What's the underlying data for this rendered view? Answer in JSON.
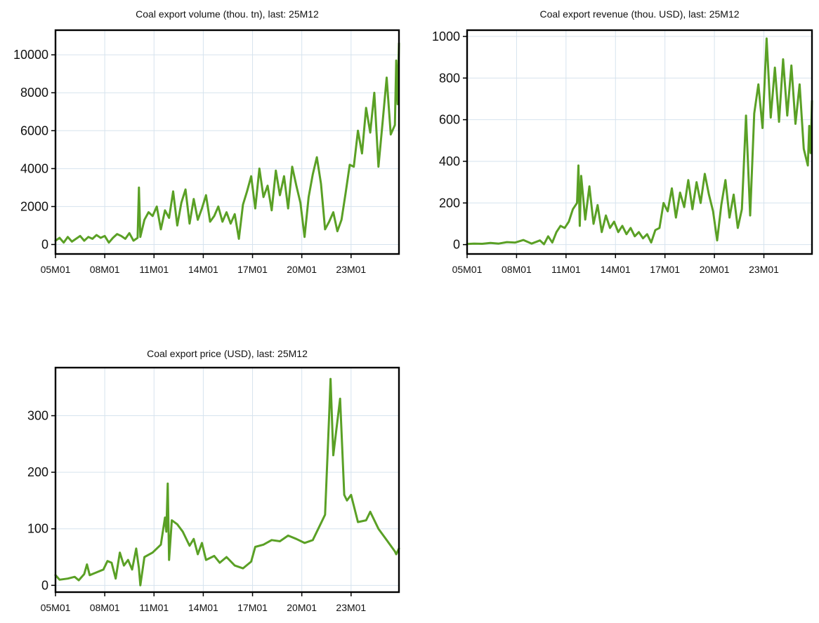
{
  "colors": {
    "line": "#5aa025",
    "grid": "#d6e3ee",
    "frame": "#000000"
  },
  "chart_data": [
    {
      "type": "line",
      "title": "Coal export volume (thou. tn), last: 25M12",
      "xlabel": "",
      "ylabel": "",
      "grid": true,
      "x_tick_labels": [
        "05M01",
        "08M01",
        "11M01",
        "14M01",
        "17M01",
        "20M01",
        "23M01"
      ],
      "y_ticks": [
        0,
        2000,
        4000,
        6000,
        8000,
        10000
      ],
      "ylim": [
        -500,
        11300
      ],
      "x_start": "05M01",
      "x_end": "25M12",
      "series": [
        {
          "points": [
            [
              "05M01",
              200
            ],
            [
              "05M04",
              350
            ],
            [
              "05M07",
              100
            ],
            [
              "05M10",
              400
            ],
            [
              "06M01",
              150
            ],
            [
              "06M04",
              300
            ],
            [
              "06M07",
              450
            ],
            [
              "06M10",
              200
            ],
            [
              "07M01",
              400
            ],
            [
              "07M04",
              300
            ],
            [
              "07M07",
              500
            ],
            [
              "07M10",
              350
            ],
            [
              "08M01",
              450
            ],
            [
              "08M04",
              100
            ],
            [
              "08M07",
              350
            ],
            [
              "08M10",
              550
            ],
            [
              "09M01",
              450
            ],
            [
              "09M04",
              300
            ],
            [
              "09M07",
              600
            ],
            [
              "09M10",
              200
            ],
            [
              "10M01",
              350
            ],
            [
              "10M02",
              3000
            ],
            [
              "10M03",
              400
            ],
            [
              "10M06",
              1300
            ],
            [
              "10M09",
              1700
            ],
            [
              "10M12",
              1500
            ],
            [
              "11M03",
              2000
            ],
            [
              "11M06",
              800
            ],
            [
              "11M09",
              1800
            ],
            [
              "11M12",
              1400
            ],
            [
              "12M03",
              2800
            ],
            [
              "12M06",
              1000
            ],
            [
              "12M09",
              2200
            ],
            [
              "12M12",
              2900
            ],
            [
              "13M03",
              1100
            ],
            [
              "13M06",
              2400
            ],
            [
              "13M09",
              1300
            ],
            [
              "13M12",
              1900
            ],
            [
              "14M03",
              2600
            ],
            [
              "14M06",
              1200
            ],
            [
              "14M09",
              1500
            ],
            [
              "14M12",
              2000
            ],
            [
              "15M03",
              1200
            ],
            [
              "15M06",
              1700
            ],
            [
              "15M09",
              1100
            ],
            [
              "15M12",
              1600
            ],
            [
              "16M03",
              300
            ],
            [
              "16M06",
              2100
            ],
            [
              "16M09",
              2800
            ],
            [
              "16M12",
              3600
            ],
            [
              "17M03",
              1900
            ],
            [
              "17M06",
              4000
            ],
            [
              "17M09",
              2500
            ],
            [
              "17M12",
              3100
            ],
            [
              "18M03",
              1800
            ],
            [
              "18M06",
              3900
            ],
            [
              "18M09",
              2600
            ],
            [
              "18M12",
              3600
            ],
            [
              "19M03",
              1900
            ],
            [
              "19M06",
              4100
            ],
            [
              "19M09",
              3100
            ],
            [
              "19M12",
              2200
            ],
            [
              "20M03",
              400
            ],
            [
              "20M06",
              2500
            ],
            [
              "20M09",
              3700
            ],
            [
              "20M12",
              4600
            ],
            [
              "21M03",
              3200
            ],
            [
              "21M06",
              800
            ],
            [
              "21M09",
              1200
            ],
            [
              "21M12",
              1700
            ],
            [
              "22M03",
              700
            ],
            [
              "22M06",
              1300
            ],
            [
              "22M09",
              2700
            ],
            [
              "22M12",
              4200
            ],
            [
              "23M03",
              4100
            ],
            [
              "23M06",
              6000
            ],
            [
              "23M09",
              4800
            ],
            [
              "23M12",
              7200
            ],
            [
              "24M03",
              5900
            ],
            [
              "24M06",
              8000
            ],
            [
              "24M09",
              4100
            ],
            [
              "24M12",
              6400
            ],
            [
              "25M03",
              8800
            ],
            [
              "25M06",
              5800
            ],
            [
              "25M09",
              6300
            ],
            [
              "25M10",
              9700
            ],
            [
              "25M11",
              7400
            ],
            [
              "25M12",
              10600
            ]
          ]
        }
      ]
    },
    {
      "type": "line",
      "title": "Coal export revenue (thou. USD), last: 25M12",
      "xlabel": "",
      "ylabel": "",
      "grid": true,
      "x_tick_labels": [
        "05M01",
        "08M01",
        "11M01",
        "14M01",
        "17M01",
        "20M01",
        "23M01"
      ],
      "y_ticks": [
        0,
        200,
        400,
        600,
        800,
        1000
      ],
      "ylim": [
        -45,
        1030
      ],
      "x_start": "05M01",
      "x_end": "25M12",
      "series": [
        {
          "points": [
            [
              "05M01",
              3
            ],
            [
              "05M06",
              5
            ],
            [
              "05M12",
              4
            ],
            [
              "06M06",
              8
            ],
            [
              "06M12",
              5
            ],
            [
              "07M06",
              12
            ],
            [
              "07M12",
              10
            ],
            [
              "08M06",
              22
            ],
            [
              "08M12",
              5
            ],
            [
              "09M06",
              20
            ],
            [
              "09M09",
              2
            ],
            [
              "09M12",
              40
            ],
            [
              "10M03",
              10
            ],
            [
              "10M06",
              60
            ],
            [
              "10M09",
              90
            ],
            [
              "10M12",
              80
            ],
            [
              "11M03",
              110
            ],
            [
              "11M06",
              170
            ],
            [
              "11M09",
              200
            ],
            [
              "11M10",
              380
            ],
            [
              "11M11",
              90
            ],
            [
              "11M12",
              330
            ],
            [
              "12M03",
              120
            ],
            [
              "12M06",
              280
            ],
            [
              "12M09",
              100
            ],
            [
              "12M12",
              190
            ],
            [
              "13M03",
              60
            ],
            [
              "13M06",
              140
            ],
            [
              "13M09",
              80
            ],
            [
              "13M12",
              110
            ],
            [
              "14M03",
              60
            ],
            [
              "14M06",
              90
            ],
            [
              "14M09",
              50
            ],
            [
              "14M12",
              80
            ],
            [
              "15M03",
              40
            ],
            [
              "15M06",
              60
            ],
            [
              "15M09",
              30
            ],
            [
              "15M12",
              50
            ],
            [
              "16M03",
              10
            ],
            [
              "16M06",
              70
            ],
            [
              "16M09",
              80
            ],
            [
              "16M12",
              200
            ],
            [
              "17M03",
              160
            ],
            [
              "17M06",
              270
            ],
            [
              "17M09",
              130
            ],
            [
              "17M12",
              250
            ],
            [
              "18M03",
              180
            ],
            [
              "18M06",
              310
            ],
            [
              "18M09",
              170
            ],
            [
              "18M12",
              300
            ],
            [
              "19M03",
              200
            ],
            [
              "19M06",
              340
            ],
            [
              "19M09",
              240
            ],
            [
              "19M12",
              160
            ],
            [
              "20M03",
              20
            ],
            [
              "20M06",
              190
            ],
            [
              "20M09",
              310
            ],
            [
              "20M12",
              130
            ],
            [
              "21M03",
              240
            ],
            [
              "21M06",
              80
            ],
            [
              "21M09",
              170
            ],
            [
              "21M12",
              620
            ],
            [
              "22M03",
              140
            ],
            [
              "22M06",
              630
            ],
            [
              "22M09",
              770
            ],
            [
              "22M12",
              560
            ],
            [
              "23M03",
              990
            ],
            [
              "23M06",
              610
            ],
            [
              "23M09",
              850
            ],
            [
              "23M12",
              590
            ],
            [
              "24M03",
              890
            ],
            [
              "24M06",
              620
            ],
            [
              "24M09",
              860
            ],
            [
              "24M12",
              580
            ],
            [
              "25M03",
              770
            ],
            [
              "25M06",
              460
            ],
            [
              "25M09",
              380
            ],
            [
              "25M10",
              570
            ],
            [
              "25M11",
              440
            ],
            [
              "25M12",
              690
            ]
          ]
        }
      ]
    },
    {
      "type": "line",
      "title": "Coal export price (USD), last: 25M12",
      "xlabel": "",
      "ylabel": "",
      "grid": true,
      "x_tick_labels": [
        "05M01",
        "08M01",
        "11M01",
        "14M01",
        "17M01",
        "20M01",
        "23M01"
      ],
      "y_ticks": [
        0,
        100,
        200,
        300
      ],
      "ylim": [
        -12,
        385
      ],
      "x_start": "05M01",
      "x_end": "25M12",
      "series": [
        {
          "points": [
            [
              "05M01",
              18
            ],
            [
              "05M04",
              10
            ],
            [
              "05M10",
              12
            ],
            [
              "06M03",
              15
            ],
            [
              "06M06",
              9
            ],
            [
              "06M10",
              20
            ],
            [
              "06M12",
              37
            ],
            [
              "07M02",
              18
            ],
            [
              "07M06",
              22
            ],
            [
              "07M12",
              28
            ],
            [
              "08M03",
              43
            ],
            [
              "08M06",
              40
            ],
            [
              "08M09",
              12
            ],
            [
              "08M12",
              58
            ],
            [
              "09M03",
              35
            ],
            [
              "09M06",
              45
            ],
            [
              "09M09",
              28
            ],
            [
              "09M12",
              65
            ],
            [
              "10M02",
              30
            ],
            [
              "10M03",
              0
            ],
            [
              "10M06",
              50
            ],
            [
              "10M12",
              58
            ],
            [
              "11M06",
              72
            ],
            [
              "11M09",
              120
            ],
            [
              "11M10",
              95
            ],
            [
              "11M11",
              180
            ],
            [
              "11M12",
              45
            ],
            [
              "12M02",
              115
            ],
            [
              "12M06",
              108
            ],
            [
              "12M10",
              95
            ],
            [
              "13M03",
              70
            ],
            [
              "13M06",
              82
            ],
            [
              "13M09",
              55
            ],
            [
              "13M12",
              75
            ],
            [
              "14M03",
              45
            ],
            [
              "14M09",
              52
            ],
            [
              "15M01",
              40
            ],
            [
              "15M06",
              50
            ],
            [
              "15M12",
              35
            ],
            [
              "16M06",
              30
            ],
            [
              "16M12",
              42
            ],
            [
              "17M03",
              68
            ],
            [
              "17M09",
              72
            ],
            [
              "18M03",
              80
            ],
            [
              "18M09",
              78
            ],
            [
              "19M03",
              88
            ],
            [
              "19M09",
              82
            ],
            [
              "20M03",
              75
            ],
            [
              "20M09",
              80
            ],
            [
              "21M03",
              110
            ],
            [
              "21M06",
              125
            ],
            [
              "21M09",
              300
            ],
            [
              "21M10",
              365
            ],
            [
              "21M12",
              230
            ],
            [
              "22M03",
              290
            ],
            [
              "22M05",
              330
            ],
            [
              "22M08",
              160
            ],
            [
              "22M10",
              150
            ],
            [
              "23M01",
              160
            ],
            [
              "23M06",
              112
            ],
            [
              "23M12",
              115
            ],
            [
              "24M03",
              130
            ],
            [
              "24M09",
              100
            ],
            [
              "25M03",
              80
            ],
            [
              "25M09",
              60
            ],
            [
              "25M10",
              55
            ],
            [
              "25M12",
              65
            ]
          ]
        }
      ]
    }
  ]
}
